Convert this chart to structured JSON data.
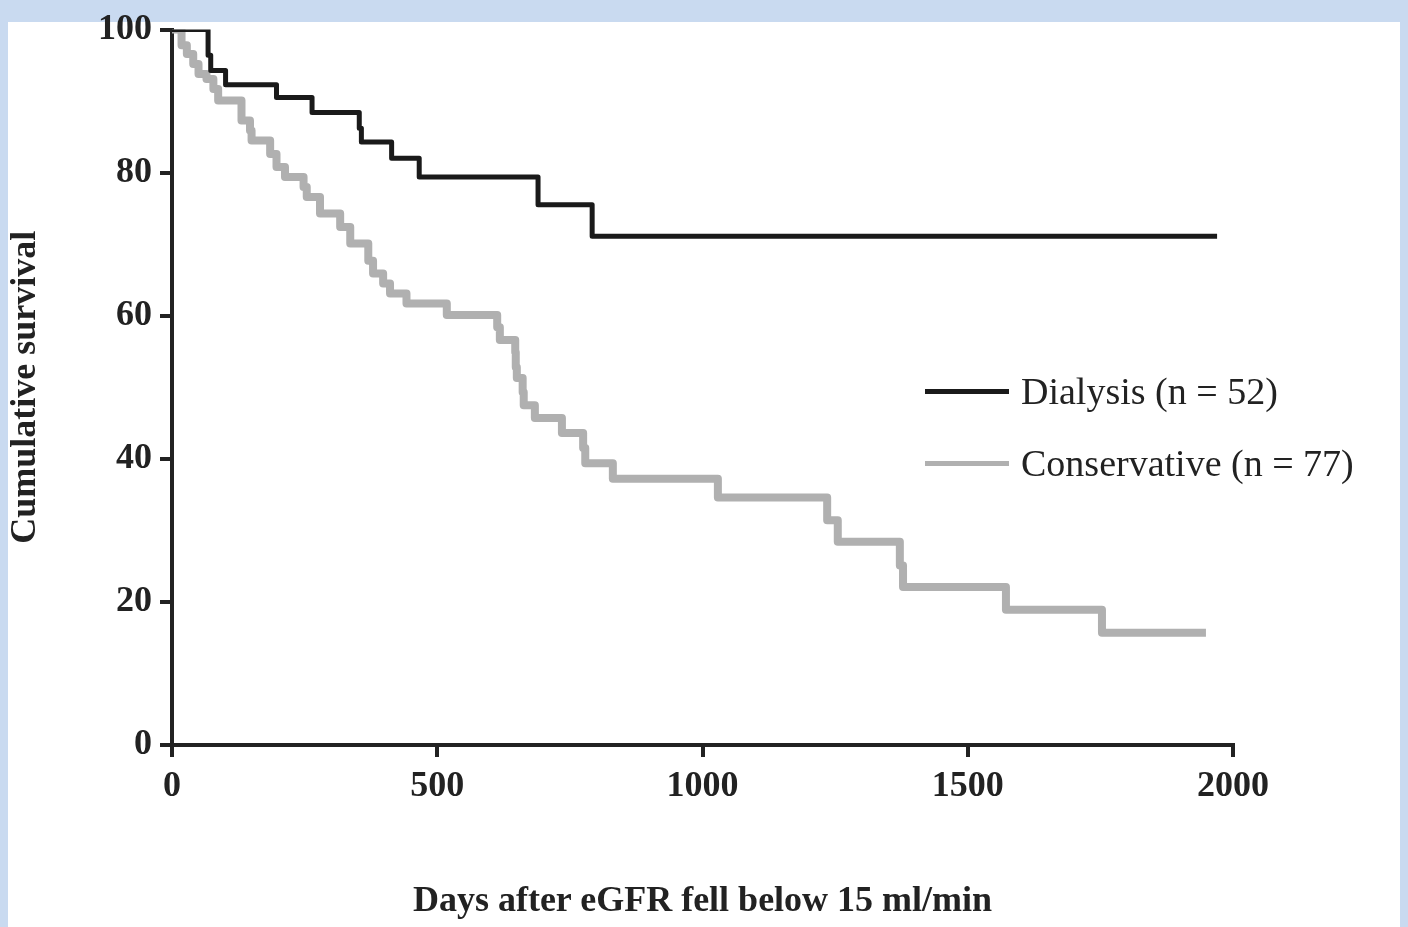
{
  "chart_data": {
    "type": "step",
    "xlabel": "Days after eGFR fell below 15 ml/min",
    "ylabel": "Cumulative survival",
    "xlim": [
      0,
      2000
    ],
    "xticks": [
      0,
      500,
      1000,
      1500,
      2000
    ],
    "ylim": [
      0,
      100
    ],
    "yticks": [
      0,
      20,
      40,
      60,
      80,
      100
    ],
    "grid": false,
    "legend": "right",
    "marker": "none",
    "line_style": "solid",
    "series": [
      {
        "name": "Dialysis (n = 52)",
        "color": "#1a1a1a",
        "x": [
          0,
          68,
          73,
          101,
          197,
          264,
          353,
          357,
          414,
          466,
          690,
          792,
          1970
        ],
        "values": [
          100,
          96.4,
          94.3,
          92.3,
          90.5,
          88.4,
          86.2,
          84.3,
          82.0,
          79.4,
          75.5,
          71.1,
          71.1
        ]
      },
      {
        "name": "Conservative (n = 77)",
        "color": "#b0b0b0",
        "x": [
          0,
          18,
          28,
          40,
          50,
          65,
          78,
          87,
          131,
          147,
          150,
          185,
          197,
          213,
          248,
          254,
          279,
          317,
          336,
          370,
          379,
          398,
          411,
          442,
          518,
          613,
          618,
          647,
          648,
          650,
          661,
          663,
          684,
          735,
          775,
          779,
          831,
          1029,
          1235,
          1255,
          1372,
          1378,
          1572,
          1753,
          1949
        ],
        "values": [
          100,
          97.8,
          96.6,
          95.2,
          93.8,
          93.1,
          91.7,
          90.1,
          87.3,
          85.9,
          84.5,
          82.6,
          80.8,
          79.4,
          78.0,
          76.6,
          74.3,
          72.4,
          70.1,
          67.7,
          65.9,
          64.5,
          63.1,
          61.7,
          60.1,
          58.4,
          56.6,
          54.9,
          52.8,
          51.3,
          49.3,
          47.5,
          45.7,
          43.6,
          41.5,
          39.4,
          37.2,
          34.6,
          31.4,
          28.4,
          25.1,
          22.1,
          18.9,
          15.7,
          15.7
        ]
      }
    ]
  }
}
